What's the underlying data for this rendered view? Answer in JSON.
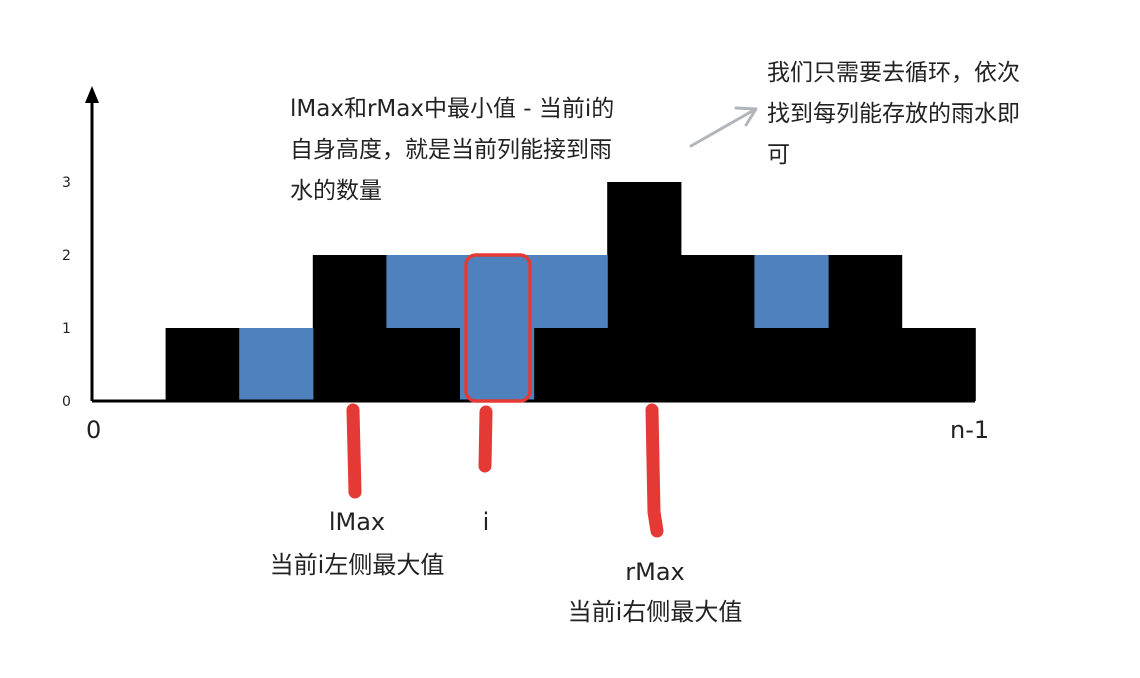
{
  "chart_data": {
    "type": "bar",
    "x_start_label": "0",
    "x_end_label": "n-1",
    "y_ticks": [
      "0",
      "1",
      "2",
      "3"
    ],
    "ylim": [
      0,
      3
    ],
    "heights": [
      0,
      1,
      0,
      2,
      1,
      0,
      1,
      3,
      2,
      1,
      2,
      1
    ],
    "water": [
      0,
      0,
      1,
      0,
      1,
      2,
      1,
      0,
      0,
      1,
      0,
      0
    ],
    "highlighted_index": 5
  },
  "colors": {
    "bar": "#000000",
    "water": "#4f81bd",
    "highlight": "#e53935",
    "marker": "#e53935",
    "arrow": "#b0b6bc",
    "text": "#222222"
  },
  "annotations": {
    "formula": [
      "lMax和rMax中最小值 - 当前i的",
      "自身高度，就是当前列能接到雨",
      "水的数量"
    ],
    "loop": [
      "我们只需要去循环，依次",
      "找到每列能存放的雨水即",
      "可"
    ]
  },
  "markers": {
    "lmax": [
      "lMax",
      "当前i左侧最大值"
    ],
    "i": [
      "i"
    ],
    "rmax": [
      "rMax",
      "当前i右侧最大值"
    ]
  }
}
